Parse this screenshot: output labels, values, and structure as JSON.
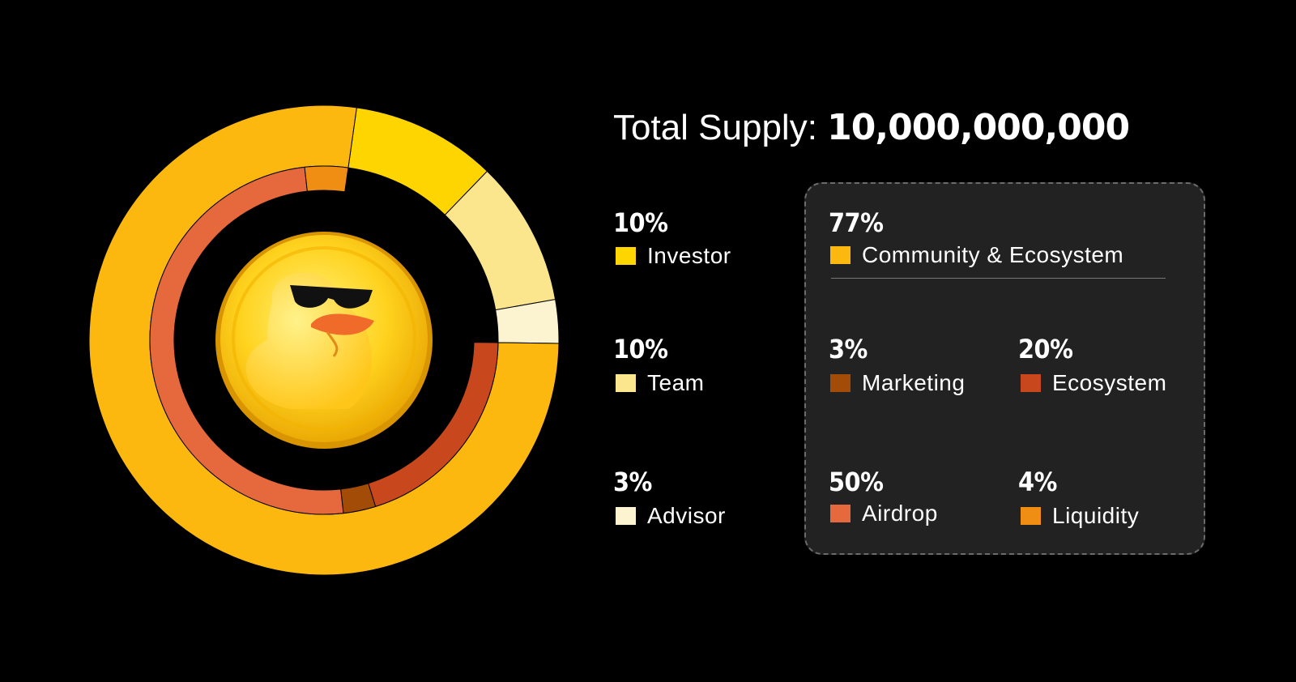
{
  "title": {
    "label": "Total Supply:",
    "value": "10,000,000,000"
  },
  "colors": {
    "background": "#000000",
    "panel": "#222222",
    "community": "#FDB80F",
    "investor": "#FFD500",
    "team": "#FBE68E",
    "advisor": "#FCF3D0",
    "marketing": "#A24C07",
    "ecosystem": "#C9471D",
    "airdrop": "#E5693C",
    "liquidity": "#F08E13"
  },
  "chart_data": [
    {
      "type": "pie",
      "name": "outer-ring",
      "categories": [
        "Community & Ecosystem",
        "Investor",
        "Team",
        "Advisor"
      ],
      "values": [
        77,
        10,
        10,
        3
      ],
      "colors": [
        "#FDB80F",
        "#FFD500",
        "#FBE68E",
        "#FCF3D0"
      ]
    },
    {
      "type": "pie",
      "name": "inner-ring",
      "categories": [
        "Marketing",
        "Ecosystem",
        "Airdrop",
        "Liquidity"
      ],
      "values": [
        3,
        20,
        50,
        4
      ],
      "colors": [
        "#A24C07",
        "#C9471D",
        "#E5693C",
        "#F08E13"
      ]
    }
  ],
  "legend": {
    "investor": {
      "pct": "10%",
      "label": "Investor"
    },
    "team": {
      "pct": "10%",
      "label": "Team"
    },
    "advisor": {
      "pct": "3%",
      "label": "Advisor"
    },
    "community": {
      "pct": "77%",
      "label": "Community & Ecosystem"
    },
    "marketing": {
      "pct": "3%",
      "label": "Marketing"
    },
    "ecosystem": {
      "pct": "20%",
      "label": "Ecosystem"
    },
    "airdrop": {
      "pct": "50%",
      "label": "Airdrop"
    },
    "liquidity": {
      "pct": "4%",
      "label": "Liquidity"
    }
  },
  "logo": {
    "icon": "duck-coin-icon"
  }
}
